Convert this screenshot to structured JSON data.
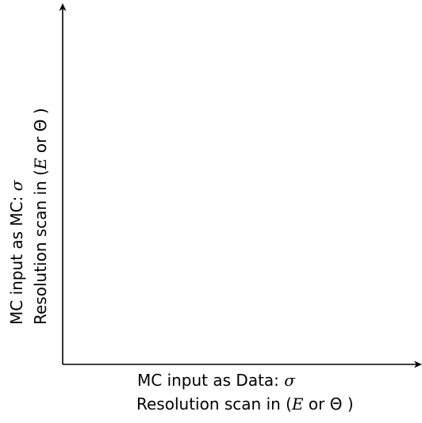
{
  "diagram": {
    "x_axis": {
      "line1_text": "MC input as Data: ",
      "line1_symbol": "σ",
      "line2_prefix": "Resolution scan in (",
      "line2_var1": "E",
      "line2_or": " or ",
      "line2_var2": "Θ",
      "line2_suffix": " )"
    },
    "y_axis": {
      "line1_text": "MC input as MC: ",
      "line1_symbol": "σ",
      "line2_prefix": "Resolution scan in (",
      "line2_var1": "E",
      "line2_or": " or ",
      "line2_var2": "Θ",
      "line2_suffix": " )"
    },
    "colors": {
      "axis": "#000000",
      "background": "#ffffff"
    }
  }
}
